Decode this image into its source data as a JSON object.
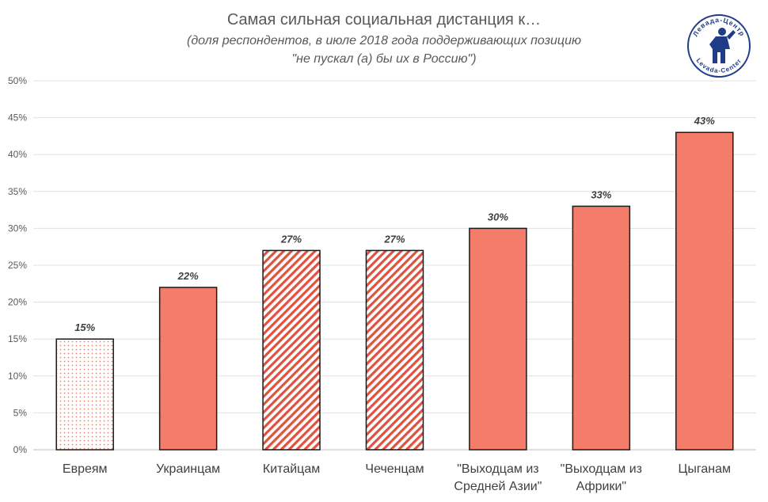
{
  "chart_data": {
    "type": "bar",
    "title": "Самая сильная социальная дистанция к…",
    "subtitle_line1": "(доля респондентов, в июле 2018 года поддерживающих позицию",
    "subtitle_line2": "\"не пускал (а) бы их в Россию\")",
    "categories": [
      [
        "Евреям"
      ],
      [
        "Украинцам"
      ],
      [
        "Китайцам"
      ],
      [
        "Чеченцам"
      ],
      [
        "\"Выходцам из",
        "Средней Азии\""
      ],
      [
        "\"Выходцам из",
        "Африки\""
      ],
      [
        "Цыганам"
      ]
    ],
    "values": [
      15,
      22,
      27,
      27,
      30,
      33,
      43
    ],
    "data_labels": [
      "15%",
      "22%",
      "27%",
      "27%",
      "30%",
      "33%",
      "43%"
    ],
    "patterns": [
      "dotted",
      "solid",
      "striped",
      "striped",
      "solid",
      "solid",
      "solid"
    ],
    "ylim": [
      0,
      50
    ],
    "yticks": [
      0,
      5,
      10,
      15,
      20,
      25,
      30,
      35,
      40,
      45,
      50
    ],
    "ytick_labels": [
      "0%",
      "5%",
      "10%",
      "15%",
      "20%",
      "25%",
      "30%",
      "35%",
      "40%",
      "45%",
      "50%"
    ],
    "grid": true,
    "legend": "none"
  },
  "colors": {
    "bar": "#f47c6b",
    "bar_border": "#1a1a1a",
    "grid": "#e0e0e0",
    "axis": "#bfbfbf",
    "logo": "#1f3c88"
  },
  "logo": {
    "text_top": "Левада-Центр",
    "text_bottom": "Levada-Center",
    "icon": "levada-center-logo"
  }
}
